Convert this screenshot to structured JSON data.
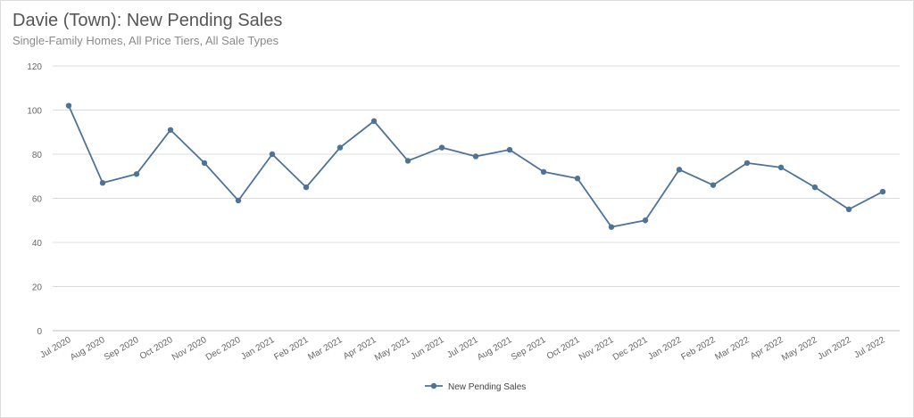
{
  "title": "Davie (Town): New Pending Sales",
  "subtitle": "Single-Family Homes, All Price Tiers, All Sale Types",
  "chart_data": {
    "type": "line",
    "title": "Davie (Town): New Pending Sales",
    "subtitle": "Single-Family Homes, All Price Tiers, All Sale Types",
    "xlabel": "",
    "ylabel": "",
    "ylim": [
      0,
      120
    ],
    "yticks": [
      0,
      20,
      40,
      60,
      80,
      100,
      120
    ],
    "grid": true,
    "legend_position": "bottom-center",
    "categories": [
      "Jul 2020",
      "Aug 2020",
      "Sep 2020",
      "Oct 2020",
      "Nov 2020",
      "Dec 2020",
      "Jan 2021",
      "Feb 2021",
      "Mar 2021",
      "Apr 2021",
      "May 2021",
      "Jun 2021",
      "Jul 2021",
      "Aug 2021",
      "Sep 2021",
      "Oct 2021",
      "Nov 2021",
      "Dec 2021",
      "Jan 2022",
      "Feb 2022",
      "Mar 2022",
      "Apr 2022",
      "May 2022",
      "Jun 2022",
      "Jul 2022"
    ],
    "series": [
      {
        "name": "New Pending Sales",
        "color": "#4e7396",
        "values": [
          102,
          67,
          71,
          91,
          76,
          59,
          80,
          65,
          83,
          95,
          77,
          83,
          79,
          82,
          72,
          69,
          47,
          50,
          73,
          66,
          76,
          74,
          65,
          55,
          63
        ]
      }
    ]
  },
  "colors": {
    "series": "#4e7396",
    "grid": "#dcdcdc",
    "text": "#666666"
  }
}
